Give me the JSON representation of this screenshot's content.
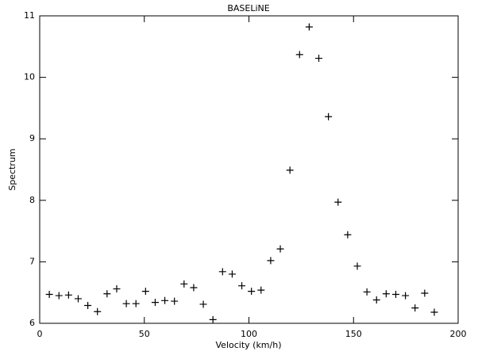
{
  "chart_data": {
    "type": "scatter",
    "title": "BASELiNE",
    "x_label": "Velocity (km/h)",
    "y_label": "Spectrum",
    "marker": "+",
    "color": "#000000",
    "x": [
      4.6,
      9.2,
      13.8,
      18.4,
      23.0,
      27.6,
      32.2,
      36.8,
      41.4,
      46.0,
      50.6,
      55.2,
      59.8,
      64.4,
      69.0,
      73.6,
      78.2,
      82.8,
      87.4,
      92.0,
      96.6,
      101.2,
      105.8,
      110.4,
      115.0,
      119.6,
      124.2,
      128.8,
      133.4,
      138.0,
      142.6,
      147.2,
      151.8,
      156.4,
      161.0,
      165.6,
      170.2,
      174.8,
      179.4,
      184.0,
      188.6
    ],
    "values": [
      6.47,
      6.45,
      6.46,
      6.4,
      6.29,
      6.19,
      6.48,
      6.56,
      6.32,
      6.32,
      6.52,
      6.34,
      6.37,
      6.36,
      6.64,
      6.58,
      6.31,
      6.06,
      6.84,
      6.8,
      6.61,
      6.52,
      6.54,
      7.02,
      7.21,
      8.49,
      10.37,
      10.82,
      10.31,
      9.36,
      7.97,
      7.44,
      6.93,
      6.51,
      6.38,
      6.48,
      6.47,
      6.45,
      6.25,
      6.49,
      6.18
    ],
    "xlim": [
      0,
      200
    ],
    "xticks": [
      0,
      50,
      100,
      150,
      200
    ],
    "ylim": [
      6,
      11
    ],
    "yticks": [
      6,
      7,
      8,
      9,
      10,
      11
    ]
  }
}
